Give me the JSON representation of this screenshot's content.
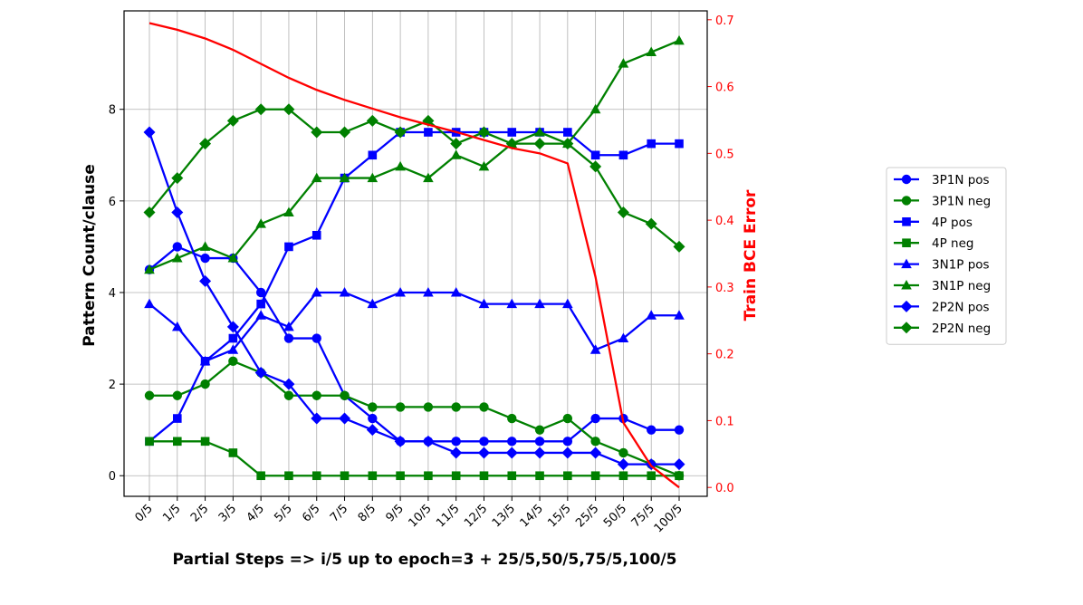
{
  "chart_data": {
    "type": "line",
    "title": "",
    "xlabel": "Partial Steps => i/5 up to epoch=3 + 25/5,50/5,75/5,100/5",
    "ylabel": "Pattern Count/clause",
    "y2label": "Train BCE Error",
    "categories": [
      "0/5",
      "1/5",
      "2/5",
      "3/5",
      "4/5",
      "5/5",
      "6/5",
      "7/5",
      "8/5",
      "9/5",
      "10/5",
      "11/5",
      "12/5",
      "13/5",
      "14/5",
      "15/5",
      "25/5",
      "50/5",
      "75/5",
      "100/5"
    ],
    "ylim": [
      -0.45,
      10.15
    ],
    "yticks": [
      0,
      2,
      4,
      6,
      8
    ],
    "y2lim": [
      -0.0133,
      0.7133
    ],
    "y2ticks": [
      0.0,
      0.1,
      0.2,
      0.3,
      0.4,
      0.5,
      0.6,
      0.7
    ],
    "grid": true,
    "legend_position": "right",
    "series": [
      {
        "name": "3P1N pos",
        "color": "#0000ff",
        "marker": "circle",
        "axis": "left",
        "values": [
          4.5,
          5.0,
          4.75,
          4.75,
          4.0,
          3.0,
          3.0,
          1.75,
          1.25,
          0.75,
          0.75,
          0.75,
          0.75,
          0.75,
          0.75,
          0.75,
          1.25,
          1.25,
          1.0,
          1.0
        ]
      },
      {
        "name": "3P1N neg",
        "color": "#008000",
        "marker": "circle",
        "axis": "left",
        "values": [
          1.75,
          1.75,
          2.0,
          2.5,
          2.25,
          1.75,
          1.75,
          1.75,
          1.5,
          1.5,
          1.5,
          1.5,
          1.5,
          1.25,
          1.0,
          1.25,
          0.75,
          0.5,
          0.25,
          0.0
        ]
      },
      {
        "name": "4P pos",
        "color": "#0000ff",
        "marker": "square",
        "axis": "left",
        "values": [
          0.75,
          1.25,
          2.5,
          3.0,
          3.75,
          5.0,
          5.25,
          6.5,
          7.0,
          7.5,
          7.5,
          7.5,
          7.5,
          7.5,
          7.5,
          7.5,
          7.0,
          7.0,
          7.25,
          7.25
        ]
      },
      {
        "name": "4P neg",
        "color": "#008000",
        "marker": "square",
        "axis": "left",
        "values": [
          0.75,
          0.75,
          0.75,
          0.5,
          0.0,
          0.0,
          0.0,
          0.0,
          0.0,
          0.0,
          0.0,
          0.0,
          0.0,
          0.0,
          0.0,
          0.0,
          0.0,
          0.0,
          0.0,
          0.0
        ]
      },
      {
        "name": "3N1P pos",
        "color": "#0000ff",
        "marker": "triangle",
        "axis": "left",
        "values": [
          3.75,
          3.25,
          2.5,
          2.75,
          3.5,
          3.25,
          4.0,
          4.0,
          3.75,
          4.0,
          4.0,
          4.0,
          3.75,
          3.75,
          3.75,
          3.75,
          2.75,
          3.0,
          3.5,
          3.5
        ]
      },
      {
        "name": "3N1P neg",
        "color": "#008000",
        "marker": "triangle",
        "axis": "left",
        "values": [
          4.5,
          4.75,
          5.0,
          4.75,
          5.5,
          5.75,
          6.5,
          6.5,
          6.5,
          6.75,
          6.5,
          7.0,
          6.75,
          7.25,
          7.5,
          7.25,
          8.0,
          9.0,
          9.25,
          9.5
        ]
      },
      {
        "name": "2P2N pos",
        "color": "#0000ff",
        "marker": "diamond",
        "axis": "left",
        "values": [
          7.5,
          5.75,
          4.25,
          3.25,
          2.25,
          2.0,
          1.25,
          1.25,
          1.0,
          0.75,
          0.75,
          0.5,
          0.5,
          0.5,
          0.5,
          0.5,
          0.5,
          0.25,
          0.25,
          0.25
        ]
      },
      {
        "name": "2P2N neg",
        "color": "#008000",
        "marker": "diamond",
        "axis": "left",
        "values": [
          5.75,
          6.5,
          7.25,
          7.75,
          8.0,
          8.0,
          7.5,
          7.5,
          7.75,
          7.5,
          7.75,
          7.25,
          7.5,
          7.25,
          7.25,
          7.25,
          6.75,
          5.75,
          5.5,
          5.0
        ]
      },
      {
        "name": "Train BCE Error",
        "color": "#ff0000",
        "marker": "none",
        "axis": "right",
        "values": [
          0.695,
          0.685,
          0.672,
          0.655,
          0.634,
          0.613,
          0.595,
          0.58,
          0.567,
          0.554,
          0.543,
          0.532,
          0.52,
          0.508,
          0.5,
          0.485,
          0.315,
          0.097,
          0.032,
          0.0
        ]
      }
    ]
  }
}
